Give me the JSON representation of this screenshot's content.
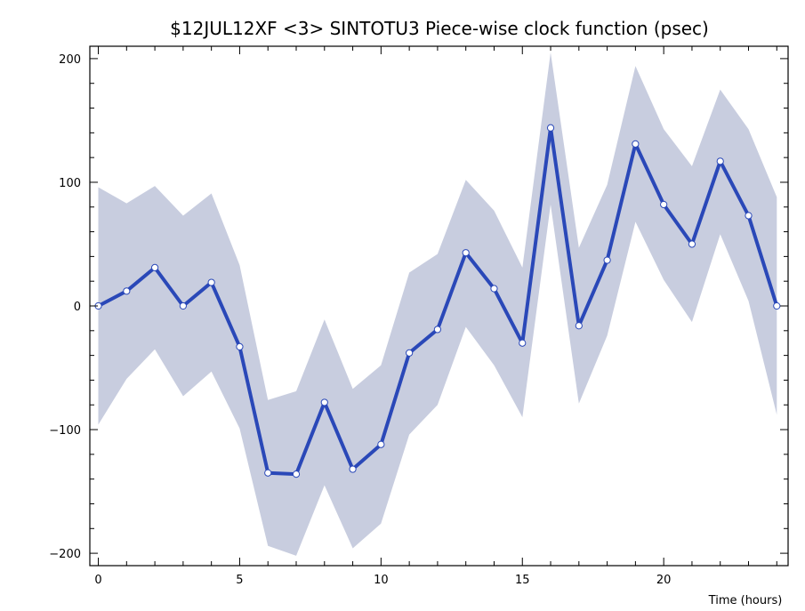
{
  "chart_data": {
    "type": "line",
    "title": "$12JUL12XF <3>  SINTOTU3  Piece-wise clock function (psec)",
    "xlabel": "Time (hours)",
    "ylabel": "",
    "xlim": [
      -0.3,
      24.4
    ],
    "ylim": [
      -210,
      210
    ],
    "x_ticks": [
      0,
      5,
      10,
      15,
      20
    ],
    "y_ticks": [
      -200,
      -100,
      0,
      100,
      200
    ],
    "x_tick_labels": [
      "0",
      "5",
      "10",
      "15",
      "20"
    ],
    "y_tick_labels": [
      "−200",
      "−100",
      "0",
      "100",
      "200"
    ],
    "grid": false,
    "series": [
      {
        "values_x": [
          0,
          1,
          2,
          3,
          4,
          5,
          6,
          7,
          8,
          9,
          10,
          11,
          12,
          13,
          14,
          15,
          16,
          17,
          18,
          19,
          20,
          21,
          22,
          23,
          24
        ],
        "values": [
          0,
          12,
          31,
          0,
          19,
          -33,
          -135,
          -136,
          -78,
          -132,
          -112,
          -38,
          -19,
          43,
          14,
          -30,
          144,
          -16,
          37,
          131,
          82,
          50,
          117,
          73,
          0
        ],
        "upper": [
          96,
          83,
          97,
          73,
          91,
          33,
          -76,
          -69,
          -11,
          -67,
          -48,
          27,
          42,
          102,
          77,
          31,
          205,
          47,
          98,
          194,
          143,
          113,
          175,
          143,
          88
        ],
        "lower": [
          -96,
          -59,
          -35,
          -73,
          -53,
          -99,
          -194,
          -202,
          -145,
          -196,
          -176,
          -104,
          -80,
          -17,
          -48,
          -90,
          82,
          -79,
          -24,
          68,
          21,
          -13,
          58,
          4,
          -88
        ]
      }
    ],
    "colors": {
      "line": "#2a48b8",
      "band": "#c8cddf",
      "marker_fill": "#ffffff",
      "marker_stroke": "#2a48b8",
      "axis": "#000000"
    }
  }
}
